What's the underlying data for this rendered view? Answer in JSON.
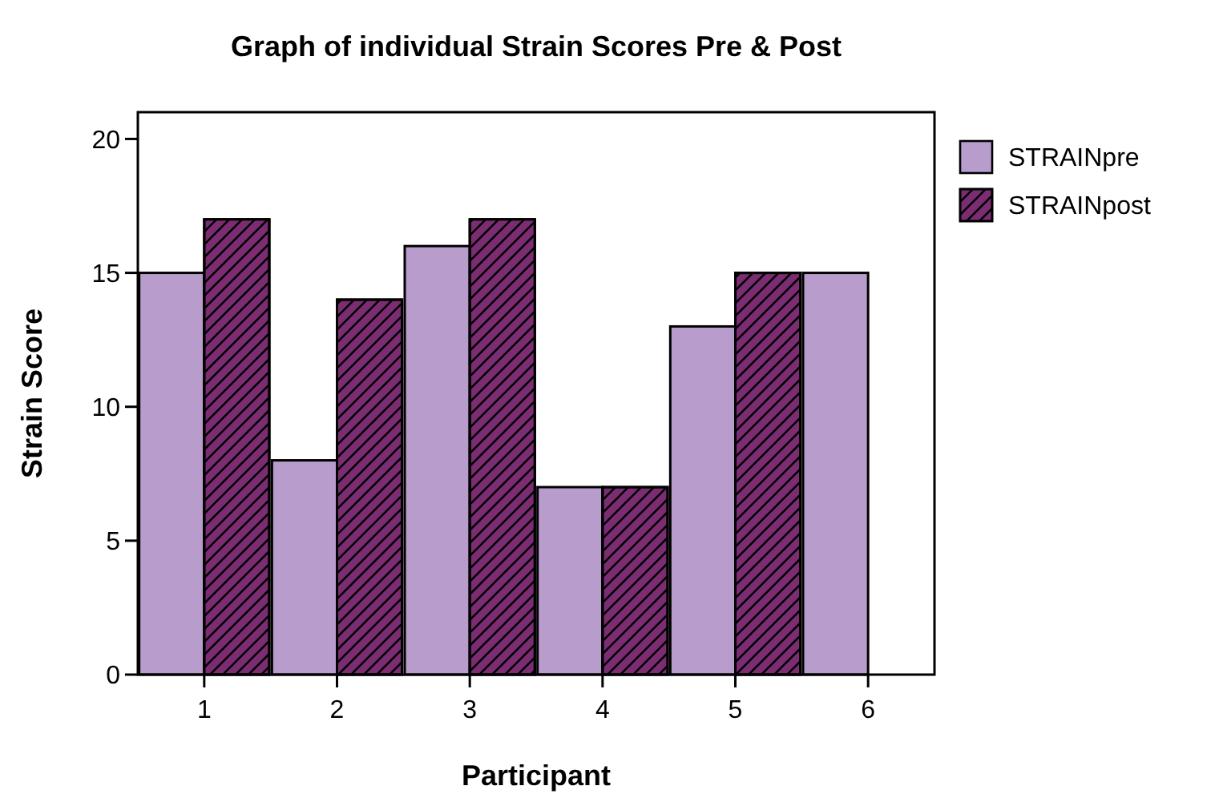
{
  "chart_data": {
    "type": "bar",
    "title": "Graph of individual Strain Scores Pre & Post",
    "xlabel": "Participant",
    "ylabel": "Strain Score",
    "categories": [
      "1",
      "2",
      "3",
      "4",
      "5",
      "6"
    ],
    "series": [
      {
        "name": "STRAINpre",
        "color": "#b89ccc",
        "values": [
          15,
          8,
          16,
          7,
          13,
          15
        ]
      },
      {
        "name": "STRAINpost",
        "color": "#7b2c72",
        "values": [
          17,
          14,
          17,
          7,
          15,
          null
        ]
      }
    ],
    "ylim": [
      0,
      21
    ],
    "yticks": [
      0,
      5,
      10,
      15,
      20
    ],
    "grid": false,
    "legend": "top right"
  }
}
